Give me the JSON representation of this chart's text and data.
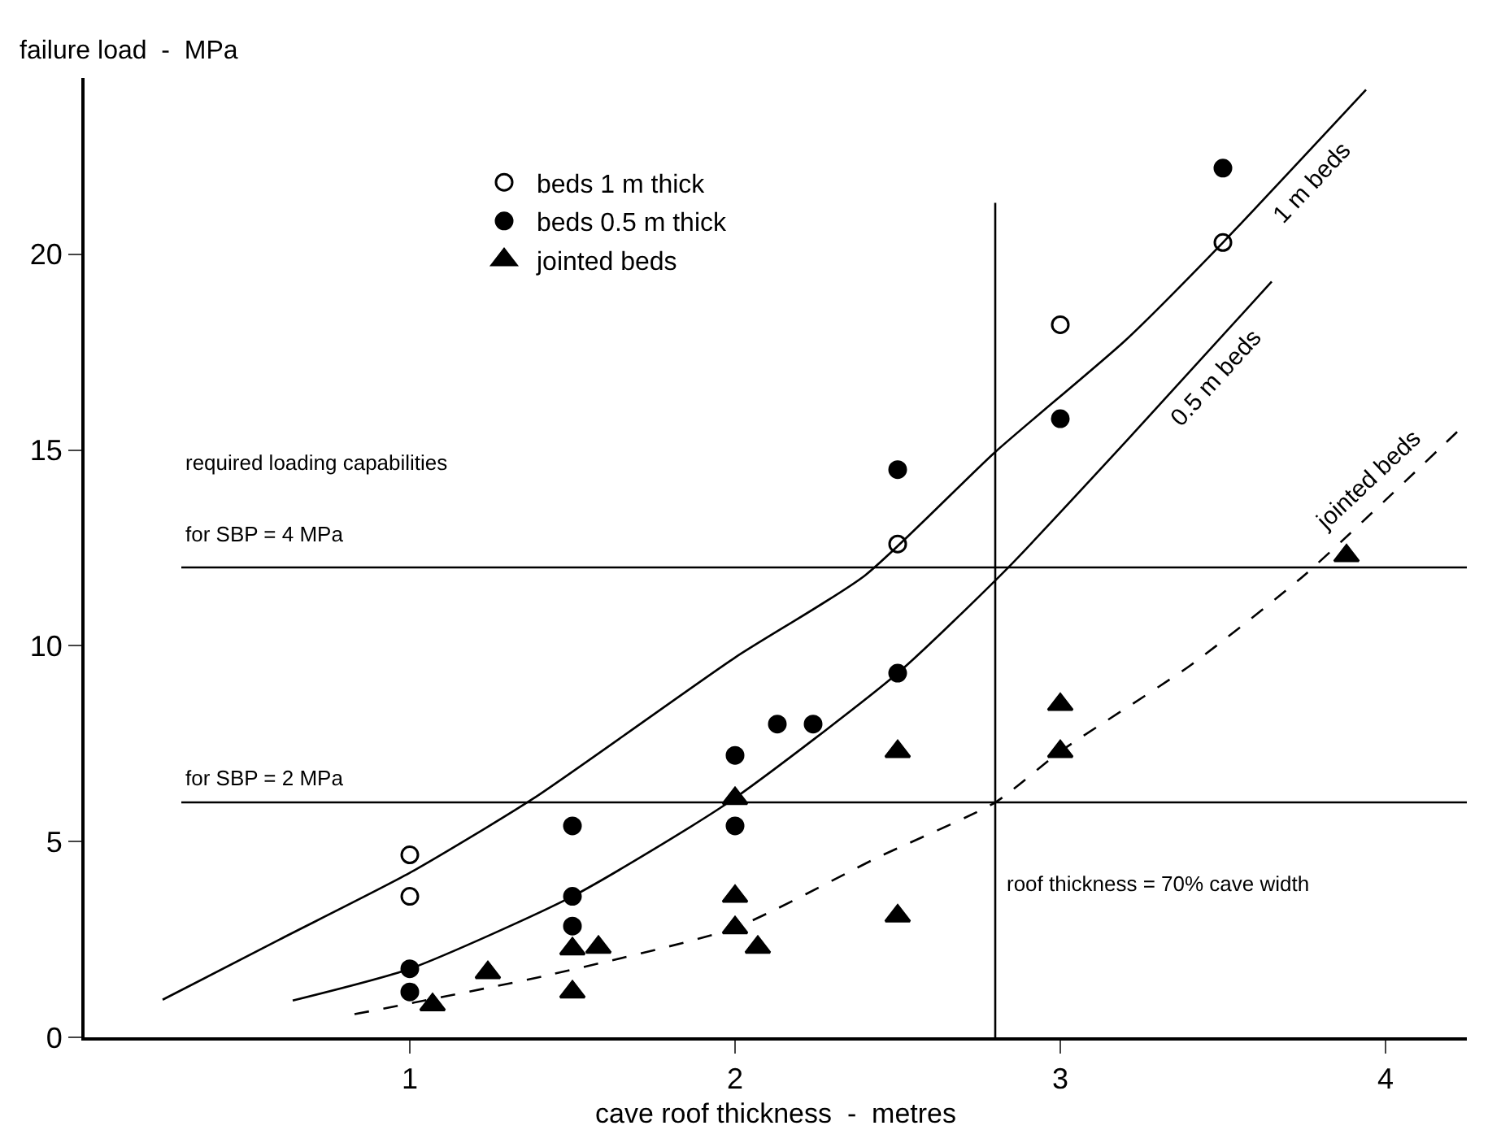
{
  "chart_data": {
    "type": "scatter",
    "xlabel": "cave roof thickness  -  metres",
    "ylabel": "failure load  -  MPa",
    "xlim": [
      0,
      4.25
    ],
    "ylim": [
      0,
      24.5
    ],
    "xticks": [
      1,
      2,
      3,
      4
    ],
    "yticks": [
      0,
      5,
      10,
      15,
      20
    ],
    "grid": false,
    "legend": "top left",
    "series": [
      {
        "name": "beds 1 m thick",
        "color": "#ffffff",
        "marker": "circle",
        "x": [
          1.0,
          1.0,
          2.5,
          3.0,
          3.5
        ],
        "values": [
          4.66,
          3.6,
          12.6,
          18.2,
          20.3
        ]
      },
      {
        "name": "beds 0.5 m thick",
        "color": "#000000",
        "marker": "circle",
        "x": [
          1.0,
          1.0,
          1.5,
          1.5,
          1.5,
          2.0,
          2.0,
          2.13,
          2.24,
          2.5,
          2.5,
          3.0,
          3.5
        ],
        "values": [
          1.75,
          1.16,
          5.4,
          3.6,
          2.84,
          7.2,
          5.4,
          8.0,
          8.0,
          9.3,
          14.5,
          15.8,
          22.2
        ]
      },
      {
        "name": "jointed beds",
        "color": "#000000",
        "marker": "triangle",
        "x": [
          1.07,
          1.24,
          1.5,
          1.58,
          1.5,
          2.0,
          2.0,
          2.0,
          2.07,
          2.5,
          2.5,
          3.0,
          3.0,
          3.88
        ],
        "values": [
          0.83,
          1.65,
          2.26,
          2.3,
          1.16,
          6.1,
          3.6,
          2.8,
          2.3,
          7.3,
          3.1,
          8.5,
          7.3,
          12.3
        ]
      },
      {
        "type": "line",
        "name": "1 m beds",
        "color": "#000000",
        "line_style": "solid",
        "x": [
          0.24,
          0.6,
          1.0,
          1.38,
          2.0,
          2.4,
          2.8,
          3.2,
          3.5,
          3.94
        ],
        "values": [
          0.96,
          2.5,
          4.2,
          6.1,
          9.7,
          11.8,
          14.95,
          17.8,
          20.3,
          24.2
        ]
      },
      {
        "type": "line",
        "name": "0.5 m beds",
        "color": "#000000",
        "line_style": "solid",
        "x": [
          0.64,
          1.0,
          1.5,
          1.98,
          2.5,
          2.84,
          3.2,
          3.65
        ],
        "values": [
          0.94,
          1.75,
          3.6,
          6.0,
          9.3,
          12.0,
          15.2,
          19.3
        ]
      },
      {
        "type": "line",
        "name": "jointed beds",
        "color": "#000000",
        "line_style": "dashed",
        "x": [
          0.83,
          1.41,
          2.0,
          2.44,
          2.8,
          3.0,
          3.4,
          3.75,
          4.25
        ],
        "values": [
          0.59,
          1.56,
          2.8,
          4.6,
          6.0,
          7.3,
          9.5,
          11.8,
          15.7
        ]
      }
    ],
    "ref_lines": [
      {
        "axis": "y",
        "value": 12,
        "color": "#000000"
      },
      {
        "axis": "y",
        "value": 6,
        "color": "#000000"
      },
      {
        "axis": "x",
        "value": 2.8,
        "color": "#000000"
      }
    ],
    "annotations": [
      "required loading capabilities",
      "for SBP = 4 MPa",
      "for SBP = 2 MPa",
      "roof thickness = 70% cave width"
    ]
  }
}
